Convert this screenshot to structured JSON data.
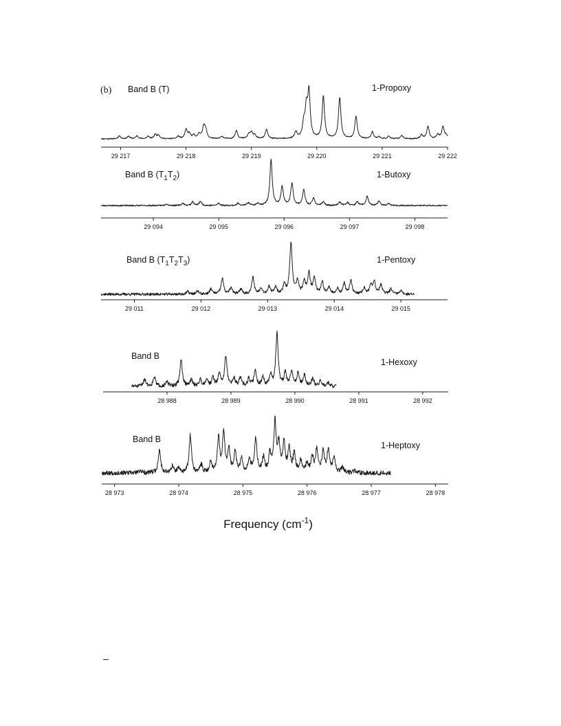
{
  "figure": {
    "panel_letter": "(b)",
    "xlabel_main": "Frequency (cm",
    "xlabel_sup": "-1",
    "xlabel_tail": ")",
    "page_mark": "–"
  },
  "chart_data": [
    {
      "type": "line",
      "band_label": "Band B (T)",
      "band_label_parts": [
        {
          "text": "Band B (T)",
          "sub": false
        }
      ],
      "molecule": "1-Propoxy",
      "xlim": [
        29216.7,
        29222
      ],
      "data_xrange": [
        29216.7,
        29222
      ],
      "xticks": [
        29217,
        29218,
        29219,
        29220,
        29221,
        29222
      ],
      "xtick_labels": [
        "29 217",
        "29 218",
        "29 219",
        "29 220",
        "29 221",
        "29 222"
      ],
      "noise": 0.01,
      "seed": 11,
      "peaks": [
        {
          "x": 29216.98,
          "h": 0.06
        },
        {
          "x": 29217.12,
          "h": 0.05
        },
        {
          "x": 29217.25,
          "h": 0.06
        },
        {
          "x": 29217.42,
          "h": 0.05
        },
        {
          "x": 29217.53,
          "h": 0.09
        },
        {
          "x": 29217.58,
          "h": 0.07
        },
        {
          "x": 29217.88,
          "h": 0.05
        },
        {
          "x": 29218.0,
          "h": 0.18
        },
        {
          "x": 29218.05,
          "h": 0.1
        },
        {
          "x": 29218.12,
          "h": 0.07
        },
        {
          "x": 29218.2,
          "h": 0.1
        },
        {
          "x": 29218.27,
          "h": 0.24
        },
        {
          "x": 29218.3,
          "h": 0.16
        },
        {
          "x": 29218.55,
          "h": 0.05
        },
        {
          "x": 29218.77,
          "h": 0.17
        },
        {
          "x": 29218.96,
          "h": 0.09
        },
        {
          "x": 29219.0,
          "h": 0.12
        },
        {
          "x": 29219.05,
          "h": 0.08
        },
        {
          "x": 29219.23,
          "h": 0.19
        },
        {
          "x": 29219.68,
          "h": 0.14
        },
        {
          "x": 29219.8,
          "h": 0.27
        },
        {
          "x": 29219.84,
          "h": 0.55
        },
        {
          "x": 29219.88,
          "h": 0.92
        },
        {
          "x": 29220.1,
          "h": 0.86
        },
        {
          "x": 29220.35,
          "h": 0.83
        },
        {
          "x": 29220.6,
          "h": 0.45
        },
        {
          "x": 29220.85,
          "h": 0.14
        },
        {
          "x": 29220.95,
          "h": 0.04
        },
        {
          "x": 29221.1,
          "h": 0.05
        },
        {
          "x": 29221.3,
          "h": 0.07
        },
        {
          "x": 29221.6,
          "h": 0.08
        },
        {
          "x": 29221.7,
          "h": 0.25
        },
        {
          "x": 29221.85,
          "h": 0.09
        },
        {
          "x": 29221.93,
          "h": 0.25
        },
        {
          "x": 29221.98,
          "h": 0.06
        }
      ]
    },
    {
      "type": "line",
      "band_label": "Band B (T1T2)",
      "band_label_parts": [
        {
          "text": "Band B (T",
          "sub": false
        },
        {
          "text": "1",
          "sub": true
        },
        {
          "text": "T",
          "sub": false
        },
        {
          "text": "2",
          "sub": true
        },
        {
          "text": ")",
          "sub": false
        }
      ],
      "molecule": "1-Butoxy",
      "xlim": [
        29093.2,
        29098.5
      ],
      "data_xrange": [
        29093.2,
        29098.5
      ],
      "xticks": [
        29094,
        29095,
        29096,
        29097,
        29098
      ],
      "xtick_labels": [
        "29 094",
        "29 095",
        "29 096",
        "29 097",
        "29 098"
      ],
      "noise": 0.015,
      "seed": 23,
      "peaks": [
        {
          "x": 29094.2,
          "h": 0.04
        },
        {
          "x": 29094.45,
          "h": 0.05
        },
        {
          "x": 29094.6,
          "h": 0.08
        },
        {
          "x": 29094.72,
          "h": 0.09
        },
        {
          "x": 29095.0,
          "h": 0.05
        },
        {
          "x": 29095.3,
          "h": 0.05
        },
        {
          "x": 29095.45,
          "h": 0.06
        },
        {
          "x": 29095.6,
          "h": 0.05
        },
        {
          "x": 29095.8,
          "h": 1.0
        },
        {
          "x": 29095.97,
          "h": 0.41
        },
        {
          "x": 29096.12,
          "h": 0.49
        },
        {
          "x": 29096.3,
          "h": 0.34
        },
        {
          "x": 29096.45,
          "h": 0.16
        },
        {
          "x": 29096.6,
          "h": 0.08
        },
        {
          "x": 29096.85,
          "h": 0.08
        },
        {
          "x": 29096.97,
          "h": 0.07
        },
        {
          "x": 29097.12,
          "h": 0.08
        },
        {
          "x": 29097.27,
          "h": 0.2
        },
        {
          "x": 29097.45,
          "h": 0.1
        },
        {
          "x": 29097.6,
          "h": 0.04
        }
      ]
    },
    {
      "type": "line",
      "band_label": "Band B (T1T2T3)",
      "band_label_parts": [
        {
          "text": "Band B (T",
          "sub": false
        },
        {
          "text": "1",
          "sub": true
        },
        {
          "text": "T",
          "sub": false
        },
        {
          "text": "2",
          "sub": true
        },
        {
          "text": "T",
          "sub": false
        },
        {
          "text": "3",
          "sub": true
        },
        {
          "text": ")",
          "sub": false
        }
      ],
      "molecule": "1-Pentoxy",
      "xlim": [
        29010.5,
        29015.7
      ],
      "data_xrange": [
        29010.5,
        29015.2
      ],
      "xticks": [
        29011,
        29012,
        29013,
        29014,
        29015
      ],
      "xtick_labels": [
        "29 011",
        "29 012",
        "29 013",
        "29 014",
        "29 015"
      ],
      "noise": 0.025,
      "seed": 37,
      "peaks": [
        {
          "x": 29011.8,
          "h": 0.05
        },
        {
          "x": 29011.95,
          "h": 0.06
        },
        {
          "x": 29012.15,
          "h": 0.1
        },
        {
          "x": 29012.32,
          "h": 0.3
        },
        {
          "x": 29012.45,
          "h": 0.12
        },
        {
          "x": 29012.6,
          "h": 0.1
        },
        {
          "x": 29012.78,
          "h": 0.32
        },
        {
          "x": 29012.9,
          "h": 0.12
        },
        {
          "x": 29013.02,
          "h": 0.14
        },
        {
          "x": 29013.12,
          "h": 0.14
        },
        {
          "x": 29013.25,
          "h": 0.18
        },
        {
          "x": 29013.35,
          "h": 0.98
        },
        {
          "x": 29013.45,
          "h": 0.24
        },
        {
          "x": 29013.55,
          "h": 0.22
        },
        {
          "x": 29013.62,
          "h": 0.4
        },
        {
          "x": 29013.7,
          "h": 0.3
        },
        {
          "x": 29013.82,
          "h": 0.22
        },
        {
          "x": 29013.92,
          "h": 0.14
        },
        {
          "x": 29014.05,
          "h": 0.1
        },
        {
          "x": 29014.15,
          "h": 0.2
        },
        {
          "x": 29014.25,
          "h": 0.25
        },
        {
          "x": 29014.45,
          "h": 0.12
        },
        {
          "x": 29014.55,
          "h": 0.16
        },
        {
          "x": 29014.6,
          "h": 0.24
        },
        {
          "x": 29014.7,
          "h": 0.18
        },
        {
          "x": 29014.85,
          "h": 0.1
        },
        {
          "x": 29015.0,
          "h": 0.06
        }
      ]
    },
    {
      "type": "line",
      "band_label": "Band B",
      "band_label_parts": [
        {
          "text": "Band B",
          "sub": false
        }
      ],
      "molecule": "1-Hexoxy",
      "xlim": [
        28987.0,
        28992.4
      ],
      "data_xrange": [
        28987.45,
        28990.65
      ],
      "xticks": [
        28988,
        28989,
        28990,
        28991,
        28992
      ],
      "xtick_labels": [
        "28 988",
        "28 989",
        "28 990",
        "28 991",
        "28 992"
      ],
      "noise": 0.035,
      "seed": 51,
      "peaks": [
        {
          "x": 28987.65,
          "h": 0.14
        },
        {
          "x": 28987.8,
          "h": 0.18
        },
        {
          "x": 28988.0,
          "h": 0.08
        },
        {
          "x": 28988.22,
          "h": 0.5
        },
        {
          "x": 28988.38,
          "h": 0.12
        },
        {
          "x": 28988.52,
          "h": 0.12
        },
        {
          "x": 28988.62,
          "h": 0.14
        },
        {
          "x": 28988.72,
          "h": 0.16
        },
        {
          "x": 28988.82,
          "h": 0.24
        },
        {
          "x": 28988.92,
          "h": 0.57
        },
        {
          "x": 28989.05,
          "h": 0.15
        },
        {
          "x": 28989.15,
          "h": 0.16
        },
        {
          "x": 28989.28,
          "h": 0.14
        },
        {
          "x": 28989.38,
          "h": 0.3
        },
        {
          "x": 28989.5,
          "h": 0.16
        },
        {
          "x": 28989.62,
          "h": 0.2
        },
        {
          "x": 28989.72,
          "h": 1.0
        },
        {
          "x": 28989.85,
          "h": 0.25
        },
        {
          "x": 28989.95,
          "h": 0.28
        },
        {
          "x": 28990.05,
          "h": 0.25
        },
        {
          "x": 28990.15,
          "h": 0.2
        },
        {
          "x": 28990.28,
          "h": 0.15
        },
        {
          "x": 28990.4,
          "h": 0.1
        },
        {
          "x": 28990.52,
          "h": 0.06
        }
      ]
    },
    {
      "type": "line",
      "band_label": "Band B",
      "band_label_parts": [
        {
          "text": "Band B",
          "sub": false
        }
      ],
      "molecule": "1-Heptoxy",
      "xlim": [
        28972.8,
        28978.2
      ],
      "data_xrange": [
        28972.8,
        28977.3
      ],
      "xticks": [
        28973,
        28974,
        28975,
        28976,
        28977,
        28978
      ],
      "xtick_labels": [
        "28 973",
        "28 974",
        "28 975",
        "28 976",
        "28  977",
        "28 978"
      ],
      "noise": 0.04,
      "seed": 67,
      "peaks": [
        {
          "x": 28973.4,
          "h": 0.05
        },
        {
          "x": 28973.7,
          "h": 0.42
        },
        {
          "x": 28973.9,
          "h": 0.12
        },
        {
          "x": 28974.0,
          "h": 0.08
        },
        {
          "x": 28974.18,
          "h": 0.68
        },
        {
          "x": 28974.35,
          "h": 0.14
        },
        {
          "x": 28974.5,
          "h": 0.2
        },
        {
          "x": 28974.62,
          "h": 0.62
        },
        {
          "x": 28974.7,
          "h": 0.72
        },
        {
          "x": 28974.78,
          "h": 0.42
        },
        {
          "x": 28974.88,
          "h": 0.36
        },
        {
          "x": 28974.98,
          "h": 0.25
        },
        {
          "x": 28975.1,
          "h": 0.26
        },
        {
          "x": 28975.2,
          "h": 0.62
        },
        {
          "x": 28975.32,
          "h": 0.26
        },
        {
          "x": 28975.42,
          "h": 0.32
        },
        {
          "x": 28975.5,
          "h": 0.9
        },
        {
          "x": 28975.56,
          "h": 0.48
        },
        {
          "x": 28975.64,
          "h": 0.52
        },
        {
          "x": 28975.72,
          "h": 0.42
        },
        {
          "x": 28975.8,
          "h": 0.34
        },
        {
          "x": 28975.9,
          "h": 0.22
        },
        {
          "x": 28976.0,
          "h": 0.16
        },
        {
          "x": 28976.08,
          "h": 0.28
        },
        {
          "x": 28976.15,
          "h": 0.4
        },
        {
          "x": 28976.25,
          "h": 0.38
        },
        {
          "x": 28976.33,
          "h": 0.4
        },
        {
          "x": 28976.42,
          "h": 0.28
        },
        {
          "x": 28976.55,
          "h": 0.1
        },
        {
          "x": 28976.75,
          "h": 0.04
        }
      ]
    }
  ]
}
